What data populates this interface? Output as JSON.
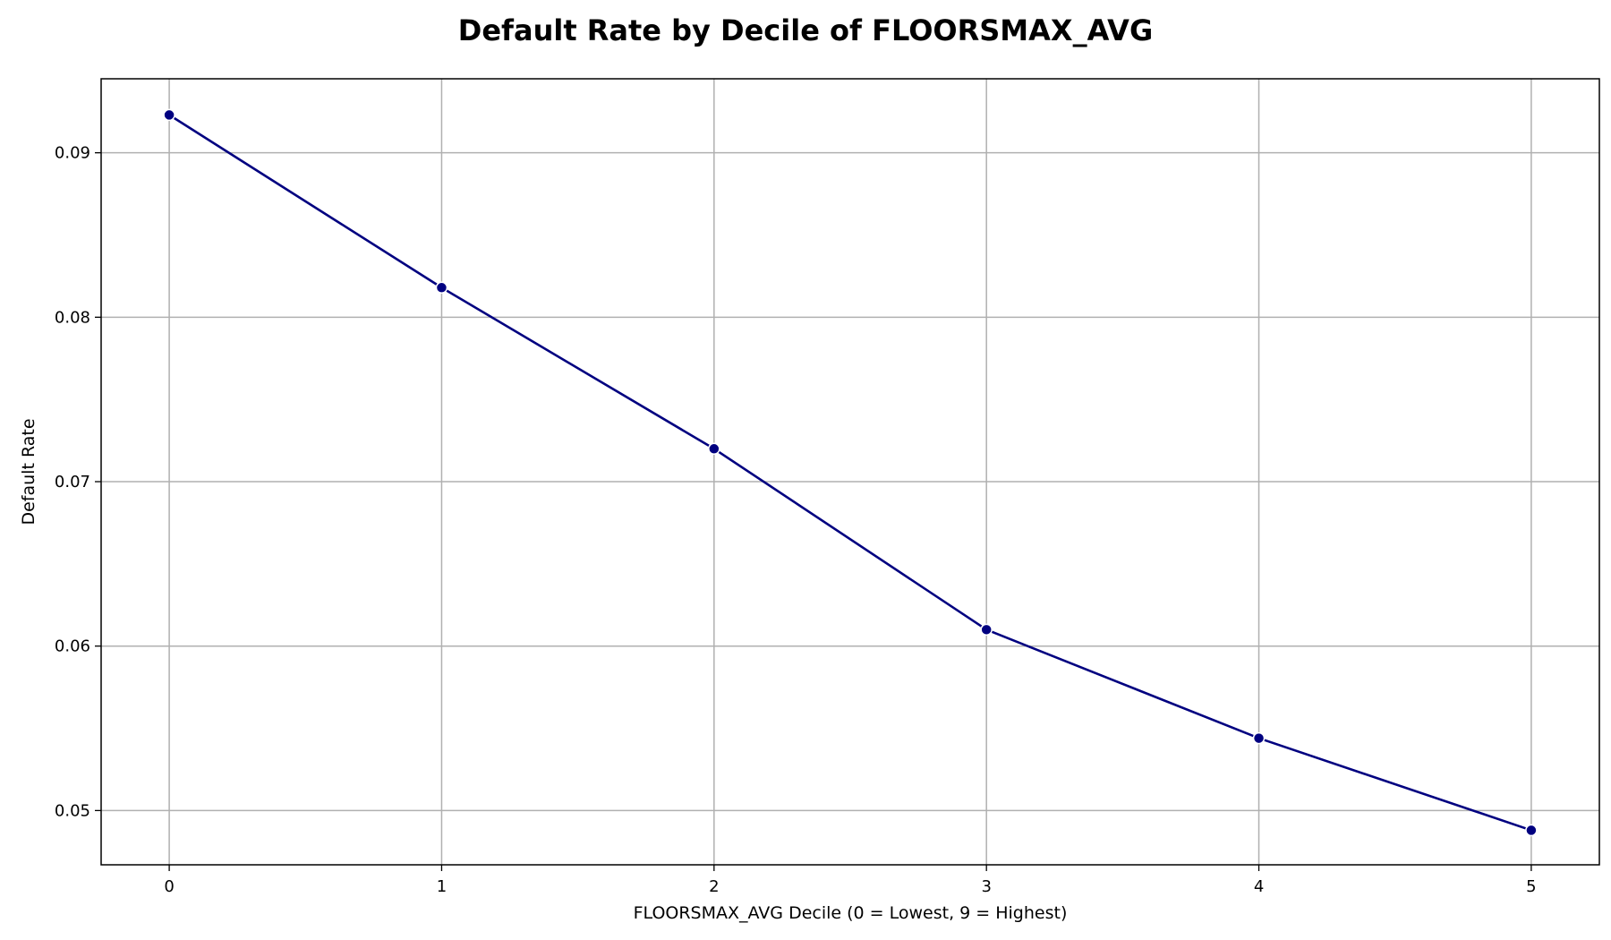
{
  "chart_data": {
    "type": "line",
    "title": "Default Rate by Decile of FLOORSMAX_AVG",
    "xlabel": "FLOORSMAX_AVG Decile (0 = Lowest, 9 = Highest)",
    "ylabel": "Default Rate",
    "x": [
      0,
      1,
      2,
      3,
      4,
      5
    ],
    "x_ticks": [
      "0",
      "1",
      "2",
      "3",
      "4",
      "5"
    ],
    "xlim": [
      -0.25,
      5.25
    ],
    "y_ticks": [
      "0.05",
      "0.06",
      "0.07",
      "0.08",
      "0.09"
    ],
    "ylim": [
      0.0467,
      0.0945
    ],
    "grid": true,
    "legend": "none",
    "series": [
      {
        "values": [
          0.0923,
          0.0818,
          0.072,
          0.061,
          0.0544,
          0.0488
        ],
        "color": "#000080",
        "marker": "circle"
      }
    ]
  }
}
